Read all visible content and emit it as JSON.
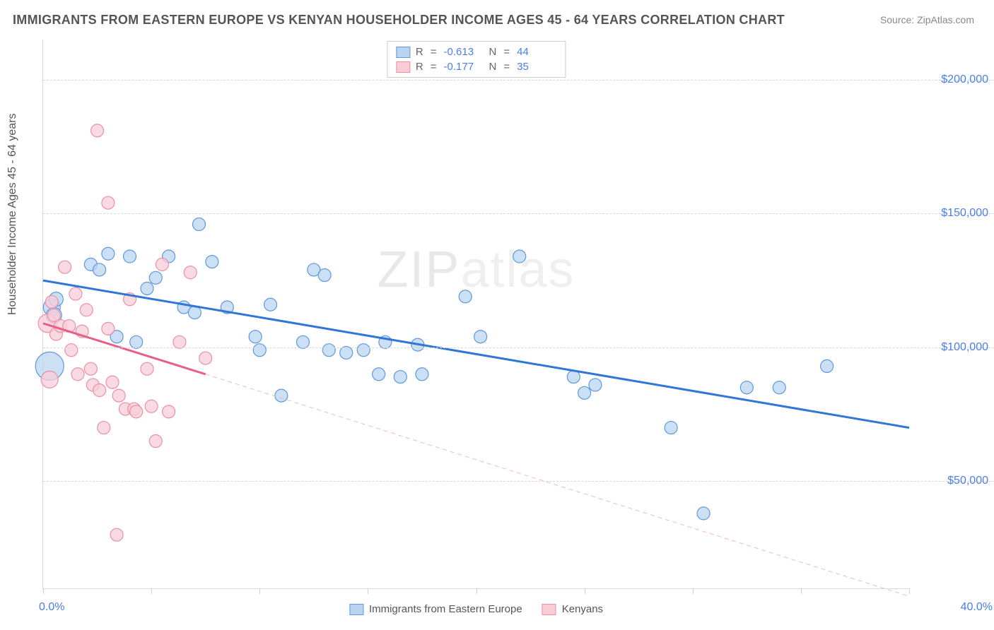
{
  "title": "IMMIGRANTS FROM EASTERN EUROPE VS KENYAN HOUSEHOLDER INCOME AGES 45 - 64 YEARS CORRELATION CHART",
  "source_label": "Source: ZipAtlas.com",
  "ylabel": "Householder Income Ages 45 - 64 years",
  "watermark_bold": "ZIP",
  "watermark_light": "atlas",
  "chart": {
    "type": "scatter",
    "background_color": "#ffffff",
    "grid_color": "#d8d8d8",
    "axis_color": "#d8d8d8",
    "tick_label_color": "#4a7ee8",
    "xlim": [
      0,
      40
    ],
    "ylim": [
      10000,
      215000
    ],
    "x_ticks_minor": [
      0,
      5,
      10,
      15,
      20,
      25,
      30,
      35,
      40
    ],
    "x_tick_labels": [
      {
        "x": 0,
        "text": "0.0%"
      },
      {
        "x": 40,
        "text": "40.0%"
      }
    ],
    "y_gridlines": [
      50000,
      100000,
      150000,
      200000
    ],
    "y_tick_labels": [
      {
        "y": 50000,
        "text": "$50,000"
      },
      {
        "y": 100000,
        "text": "$100,000"
      },
      {
        "y": 150000,
        "text": "$150,000"
      },
      {
        "y": 200000,
        "text": "$200,000"
      }
    ],
    "series": [
      {
        "name": "Immigrants from Eastern Europe",
        "marker_fill": "#b9d4f2",
        "marker_stroke": "#5f98dd",
        "marker_opacity": 0.75,
        "base_radius": 9,
        "trend": {
          "color": "#2f76d6",
          "width": 3,
          "x1": 0,
          "y1": 125000,
          "x2": 40,
          "y2": 70000
        },
        "R": "-0.613",
        "N": "44",
        "points": [
          {
            "x": 0.3,
            "y": 93000,
            "r": 20
          },
          {
            "x": 0.4,
            "y": 115000,
            "r": 12
          },
          {
            "x": 0.5,
            "y": 112000,
            "r": 11
          },
          {
            "x": 0.6,
            "y": 118000,
            "r": 10
          },
          {
            "x": 2.2,
            "y": 131000
          },
          {
            "x": 2.6,
            "y": 129000
          },
          {
            "x": 3.0,
            "y": 135000
          },
          {
            "x": 3.4,
            "y": 104000
          },
          {
            "x": 4.0,
            "y": 134000
          },
          {
            "x": 4.3,
            "y": 102000
          },
          {
            "x": 4.8,
            "y": 122000
          },
          {
            "x": 5.2,
            "y": 126000
          },
          {
            "x": 5.8,
            "y": 134000
          },
          {
            "x": 6.5,
            "y": 115000
          },
          {
            "x": 7.0,
            "y": 113000
          },
          {
            "x": 7.2,
            "y": 146000
          },
          {
            "x": 7.8,
            "y": 132000
          },
          {
            "x": 8.5,
            "y": 115000
          },
          {
            "x": 9.8,
            "y": 104000
          },
          {
            "x": 10.0,
            "y": 99000
          },
          {
            "x": 10.5,
            "y": 116000
          },
          {
            "x": 11.0,
            "y": 82000
          },
          {
            "x": 12.0,
            "y": 102000
          },
          {
            "x": 12.5,
            "y": 129000
          },
          {
            "x": 13.0,
            "y": 127000
          },
          {
            "x": 13.2,
            "y": 99000
          },
          {
            "x": 14.0,
            "y": 98000
          },
          {
            "x": 14.8,
            "y": 99000
          },
          {
            "x": 15.5,
            "y": 90000
          },
          {
            "x": 15.8,
            "y": 102000
          },
          {
            "x": 16.5,
            "y": 89000
          },
          {
            "x": 17.3,
            "y": 101000
          },
          {
            "x": 17.5,
            "y": 90000
          },
          {
            "x": 19.5,
            "y": 119000
          },
          {
            "x": 20.2,
            "y": 104000
          },
          {
            "x": 22.0,
            "y": 134000
          },
          {
            "x": 24.5,
            "y": 89000
          },
          {
            "x": 25.0,
            "y": 83000
          },
          {
            "x": 25.5,
            "y": 86000
          },
          {
            "x": 29.0,
            "y": 70000
          },
          {
            "x": 30.5,
            "y": 38000
          },
          {
            "x": 32.5,
            "y": 85000
          },
          {
            "x": 34.0,
            "y": 85000
          },
          {
            "x": 36.2,
            "y": 93000
          }
        ]
      },
      {
        "name": "Kenyans",
        "marker_fill": "#f8cdd8",
        "marker_stroke": "#ea8fa7",
        "marker_opacity": 0.75,
        "base_radius": 9,
        "trend": {
          "color": "#e85f86",
          "width": 3,
          "x1": 0,
          "y1": 109000,
          "x2": 7.5,
          "y2": 90000
        },
        "trend_ext": {
          "color": "#f4b7c5",
          "width": 1,
          "dash": "6 5",
          "x1": 7.5,
          "y1": 90000,
          "x2": 40,
          "y2": 7000
        },
        "R": "-0.177",
        "N": "35",
        "points": [
          {
            "x": 0.2,
            "y": 109000,
            "r": 13
          },
          {
            "x": 0.3,
            "y": 88000,
            "r": 12
          },
          {
            "x": 0.4,
            "y": 117000
          },
          {
            "x": 0.5,
            "y": 112000
          },
          {
            "x": 0.6,
            "y": 105000
          },
          {
            "x": 0.8,
            "y": 108000
          },
          {
            "x": 1.0,
            "y": 130000
          },
          {
            "x": 1.2,
            "y": 108000
          },
          {
            "x": 1.3,
            "y": 99000
          },
          {
            "x": 1.5,
            "y": 120000
          },
          {
            "x": 1.6,
            "y": 90000
          },
          {
            "x": 1.8,
            "y": 106000
          },
          {
            "x": 2.0,
            "y": 114000
          },
          {
            "x": 2.2,
            "y": 92000
          },
          {
            "x": 2.3,
            "y": 86000
          },
          {
            "x": 2.5,
            "y": 181000
          },
          {
            "x": 2.6,
            "y": 84000
          },
          {
            "x": 2.8,
            "y": 70000
          },
          {
            "x": 3.0,
            "y": 107000
          },
          {
            "x": 3.0,
            "y": 154000
          },
          {
            "x": 3.2,
            "y": 87000
          },
          {
            "x": 3.4,
            "y": 30000
          },
          {
            "x": 3.5,
            "y": 82000
          },
          {
            "x": 3.8,
            "y": 77000
          },
          {
            "x": 4.0,
            "y": 118000
          },
          {
            "x": 4.2,
            "y": 77000
          },
          {
            "x": 4.3,
            "y": 76000
          },
          {
            "x": 4.8,
            "y": 92000
          },
          {
            "x": 5.0,
            "y": 78000
          },
          {
            "x": 5.2,
            "y": 65000
          },
          {
            "x": 5.5,
            "y": 131000
          },
          {
            "x": 5.8,
            "y": 76000
          },
          {
            "x": 6.3,
            "y": 102000
          },
          {
            "x": 6.8,
            "y": 128000
          },
          {
            "x": 7.5,
            "y": 96000
          }
        ]
      }
    ],
    "bottom_legend": [
      {
        "label": "Immigrants from Eastern Europe",
        "fill": "#b9d4f2",
        "stroke": "#5f98dd"
      },
      {
        "label": "Kenyans",
        "fill": "#f8cdd8",
        "stroke": "#ea8fa7"
      }
    ]
  }
}
